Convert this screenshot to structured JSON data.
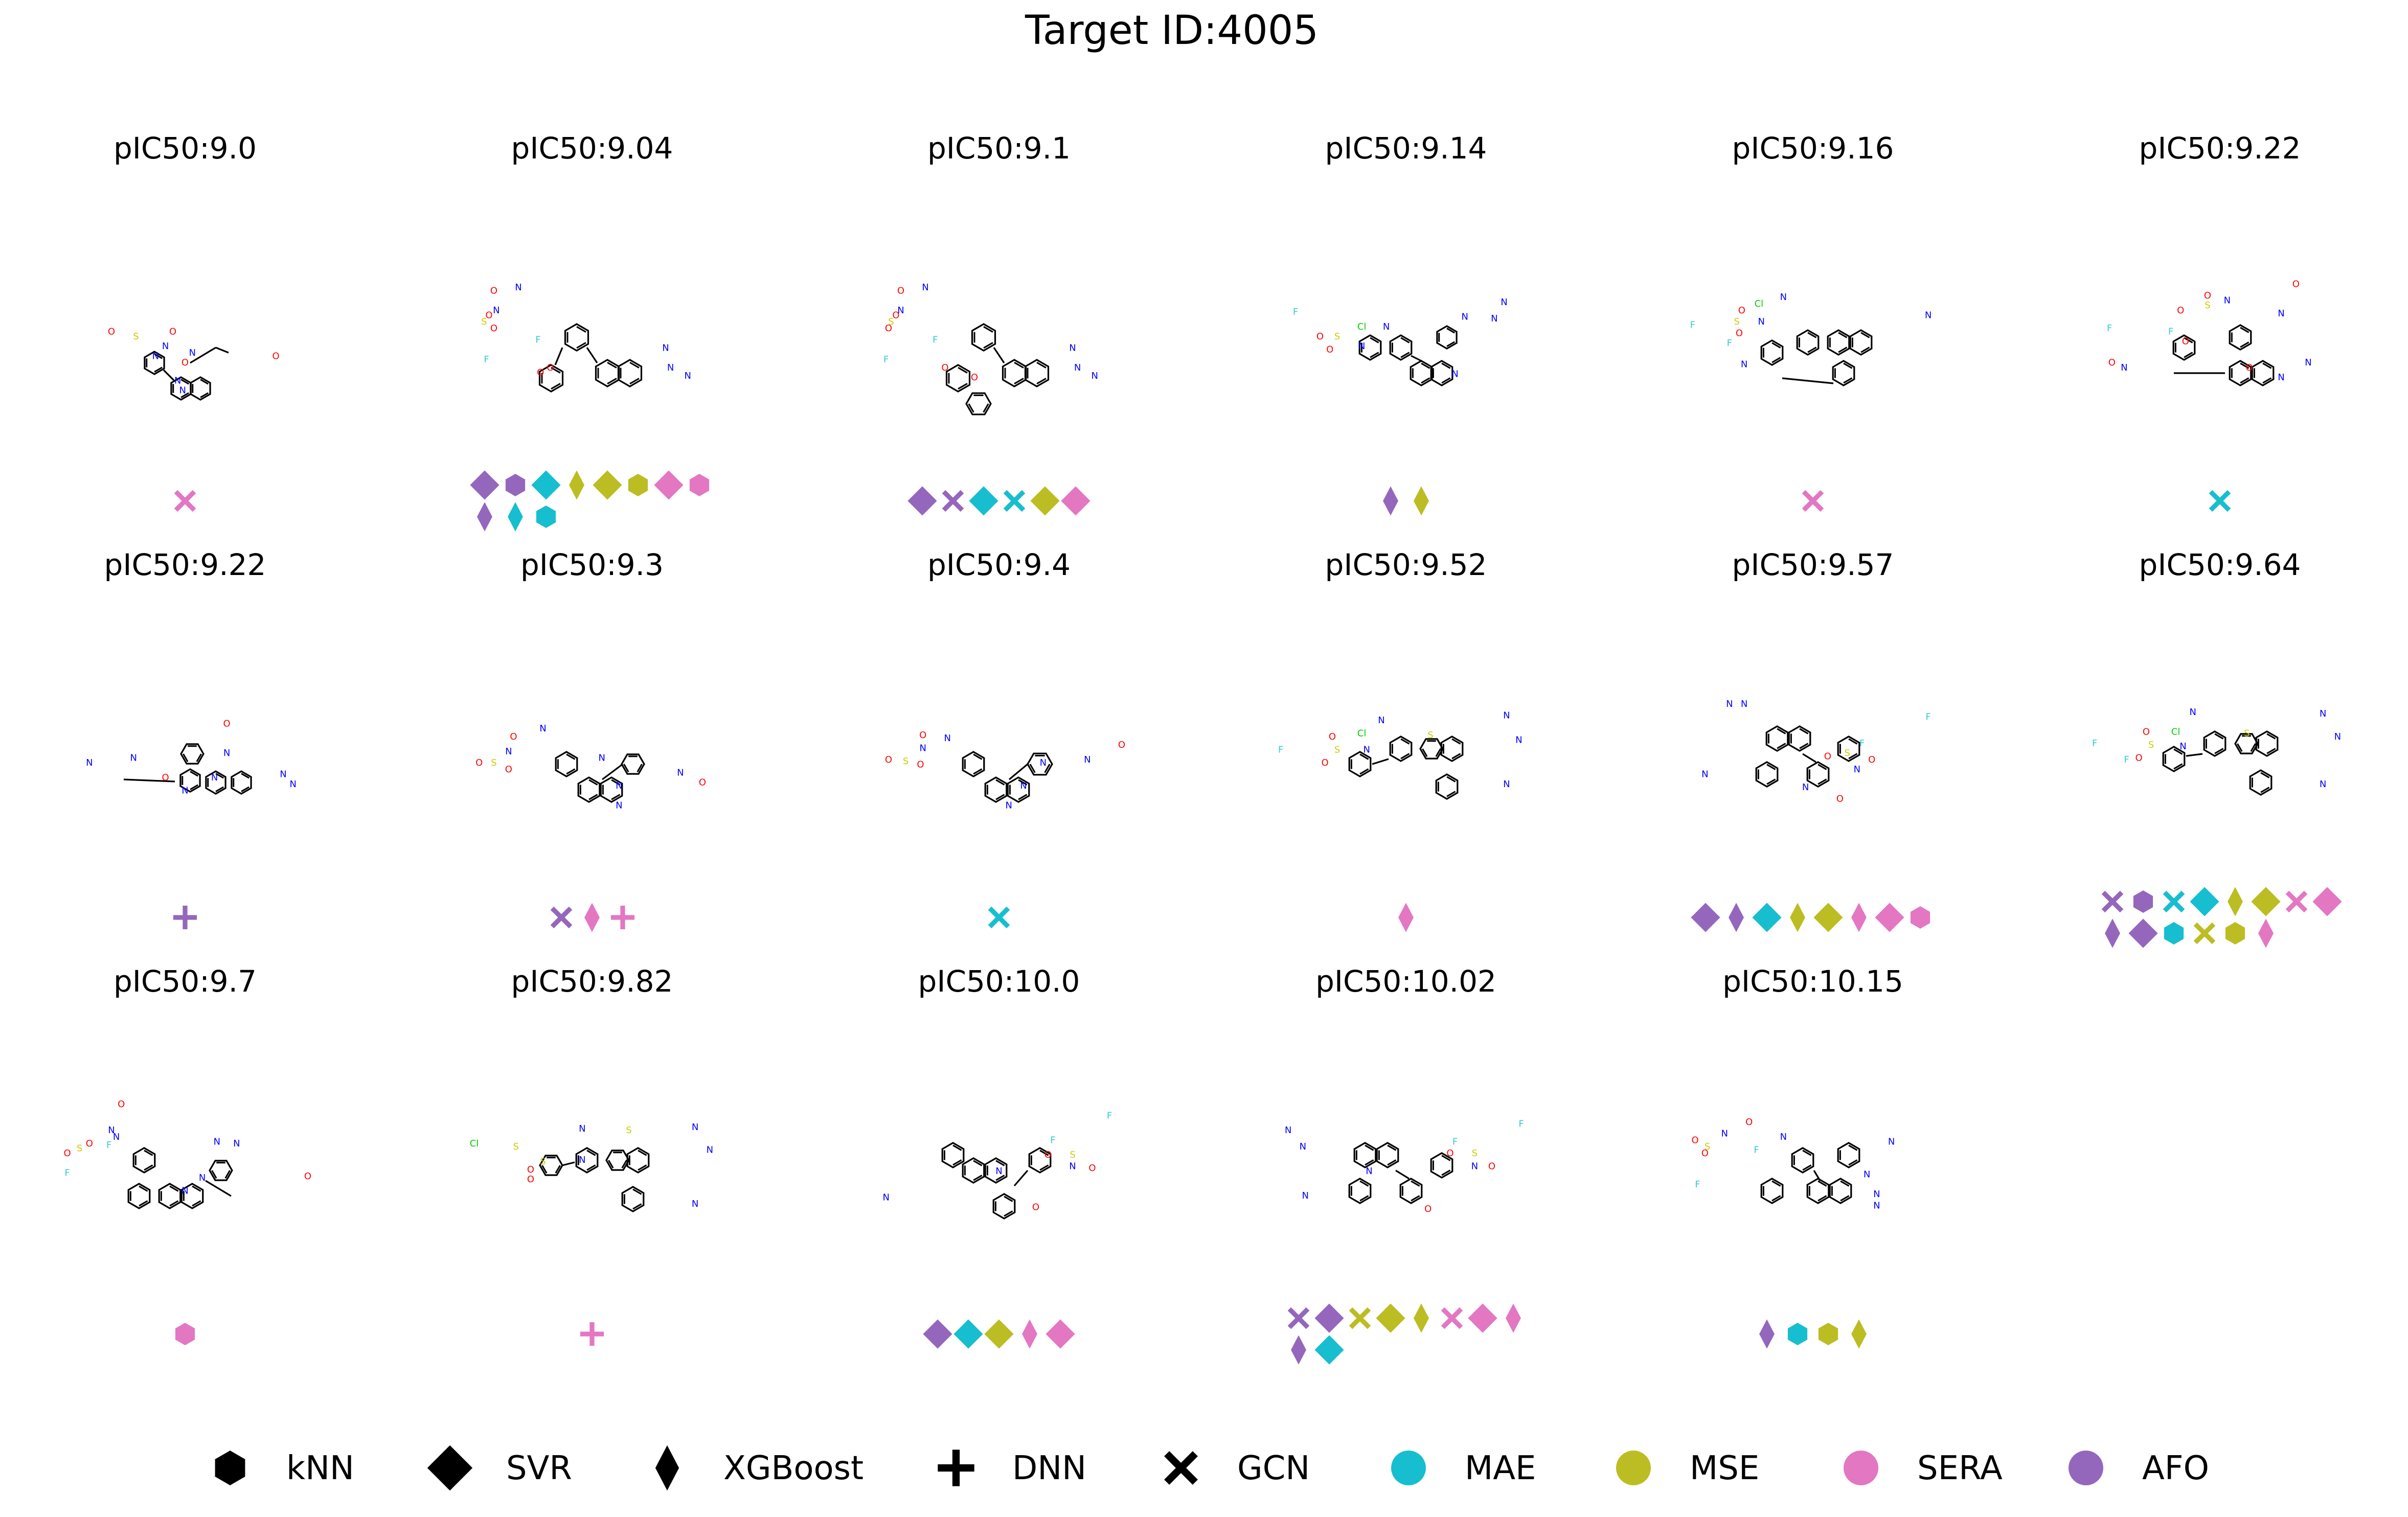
{
  "title": "Target ID:4005",
  "colors": {
    "MAE": "#17becf",
    "MSE": "#bcbd22",
    "SERA": "#e377c2",
    "AFO": "#9467bd",
    "bond": "#000000",
    "N": "#0000ff",
    "O": "#ff0000",
    "S": "#cccc00",
    "F": "#33cccc",
    "Cl": "#00cc00"
  },
  "legend": {
    "models": [
      {
        "label": "kNN",
        "icon": "hexagon-icon"
      },
      {
        "label": "SVR",
        "icon": "diamond-icon"
      },
      {
        "label": "XGBoost",
        "icon": "thin-diamond-icon"
      },
      {
        "label": "DNN",
        "icon": "plus-icon"
      },
      {
        "label": "GCN",
        "icon": "cross-icon"
      }
    ],
    "metrics": [
      {
        "label": "MAE",
        "color": "#17becf"
      },
      {
        "label": "MSE",
        "color": "#bcbd22"
      },
      {
        "label": "SERA",
        "color": "#e377c2"
      },
      {
        "label": "AFO",
        "color": "#9467bd"
      }
    ]
  },
  "panels": [
    {
      "label": "pIC50:9.0",
      "markers": [
        [
          "GCN",
          "SERA"
        ]
      ]
    },
    {
      "label": "pIC50:9.04",
      "markers": [
        [
          "SVR",
          "AFO"
        ],
        [
          "kNN",
          "AFO"
        ],
        [
          "SVR",
          "MAE"
        ],
        [
          "XGBoost",
          "MSE"
        ],
        [
          "SVR",
          "MSE"
        ],
        [
          "kNN",
          "MSE"
        ],
        [
          "SVR",
          "SERA"
        ],
        [
          "kNN",
          "SERA"
        ],
        [
          "XGBoost",
          "AFO"
        ],
        [
          "XGBoost",
          "MAE"
        ],
        [
          "kNN",
          "MAE"
        ]
      ]
    },
    {
      "label": "pIC50:9.1",
      "markers": [
        [
          "SVR",
          "AFO"
        ],
        [
          "GCN",
          "AFO"
        ],
        [
          "SVR",
          "MAE"
        ],
        [
          "GCN",
          "MAE"
        ],
        [
          "SVR",
          "MSE"
        ],
        [
          "SVR",
          "SERA"
        ]
      ]
    },
    {
      "label": "pIC50:9.14",
      "markers": [
        [
          "XGBoost",
          "AFO"
        ],
        [
          "XGBoost",
          "MSE"
        ]
      ]
    },
    {
      "label": "pIC50:9.16",
      "markers": [
        [
          "GCN",
          "SERA"
        ]
      ]
    },
    {
      "label": "pIC50:9.22",
      "markers": [
        [
          "GCN",
          "MAE"
        ]
      ]
    },
    {
      "label": "pIC50:9.22",
      "markers": [
        [
          "DNN",
          "AFO"
        ]
      ]
    },
    {
      "label": "pIC50:9.3",
      "markers": [
        [
          "GCN",
          "AFO"
        ],
        [
          "XGBoost",
          "SERA"
        ],
        [
          "DNN",
          "SERA"
        ]
      ]
    },
    {
      "label": "pIC50:9.4",
      "markers": [
        [
          "GCN",
          "MAE"
        ]
      ]
    },
    {
      "label": "pIC50:9.52",
      "markers": [
        [
          "XGBoost",
          "SERA"
        ]
      ]
    },
    {
      "label": "pIC50:9.57",
      "markers": [
        [
          "SVR",
          "AFO"
        ],
        [
          "XGBoost",
          "AFO"
        ],
        [
          "SVR",
          "MAE"
        ],
        [
          "XGBoost",
          "MSE"
        ],
        [
          "SVR",
          "MSE"
        ],
        [
          "XGBoost",
          "SERA"
        ],
        [
          "SVR",
          "SERA"
        ],
        [
          "kNN",
          "SERA"
        ]
      ]
    },
    {
      "label": "pIC50:9.64",
      "markers": [
        [
          "GCN",
          "AFO"
        ],
        [
          "kNN",
          "AFO"
        ],
        [
          "GCN",
          "MAE"
        ],
        [
          "SVR",
          "MAE"
        ],
        [
          "XGBoost",
          "MSE"
        ],
        [
          "SVR",
          "MSE"
        ],
        [
          "GCN",
          "SERA"
        ],
        [
          "SVR",
          "SERA"
        ],
        [
          "XGBoost",
          "AFO"
        ],
        [
          "SVR",
          "AFO"
        ],
        [
          "kNN",
          "MAE"
        ],
        [
          "GCN",
          "MSE"
        ],
        [
          "kNN",
          "MSE"
        ],
        [
          "XGBoost",
          "SERA"
        ]
      ]
    },
    {
      "label": "pIC50:9.7",
      "markers": [
        [
          "kNN",
          "SERA"
        ]
      ]
    },
    {
      "label": "pIC50:9.82",
      "markers": [
        [
          "DNN",
          "SERA"
        ]
      ]
    },
    {
      "label": "pIC50:10.0",
      "markers": [
        [
          "SVR",
          "AFO"
        ],
        [
          "SVR",
          "MAE"
        ],
        [
          "SVR",
          "MSE"
        ],
        [
          "XGBoost",
          "SERA"
        ],
        [
          "SVR",
          "SERA"
        ]
      ]
    },
    {
      "label": "pIC50:10.02",
      "markers": [
        [
          "GCN",
          "AFO"
        ],
        [
          "SVR",
          "AFO"
        ],
        [
          "GCN",
          "MSE"
        ],
        [
          "SVR",
          "MSE"
        ],
        [
          "XGBoost",
          "MSE"
        ],
        [
          "GCN",
          "SERA"
        ],
        [
          "SVR",
          "SERA"
        ],
        [
          "XGBoost",
          "SERA"
        ],
        [
          "XGBoost",
          "AFO"
        ],
        [
          "SVR",
          "MAE"
        ]
      ]
    },
    {
      "label": "pIC50:10.15",
      "markers": [
        [
          "XGBoost",
          "AFO"
        ],
        [
          "kNN",
          "MAE"
        ],
        [
          "kNN",
          "MSE"
        ],
        [
          "XGBoost",
          "MSE"
        ]
      ]
    }
  ],
  "molecules": [
    {
      "atoms": [
        [
          "O",
          0,
          -28
        ],
        [
          "N",
          -16,
          -48
        ],
        [
          "O",
          -60,
          -66
        ],
        [
          "O",
          -10,
          -66
        ],
        [
          "S",
          -40,
          -60
        ],
        [
          "N",
          -24,
          -36
        ],
        [
          "N",
          -6,
          -6
        ],
        [
          "N",
          -2,
          6
        ],
        [
          "N",
          6,
          -40
        ],
        [
          "O",
          74,
          -36
        ]
      ]
    },
    {
      "atoms": [
        [
          "N",
          -60,
          -120
        ],
        [
          "O",
          -80,
          -116
        ],
        [
          "N",
          -78,
          -92
        ],
        [
          "O",
          -80,
          -70
        ],
        [
          "O",
          -84,
          -86
        ],
        [
          "S",
          -88,
          -78
        ],
        [
          "F",
          -44,
          -56
        ],
        [
          "F",
          -86,
          -32
        ],
        [
          "O",
          -34,
          -22
        ],
        [
          "O",
          -42,
          -16
        ],
        [
          "N",
          60,
          -46
        ],
        [
          "N",
          64,
          -22
        ],
        [
          "N",
          78,
          -12
        ]
      ]
    },
    {
      "atoms": [
        [
          "N",
          -60,
          -120
        ],
        [
          "O",
          -80,
          -116
        ],
        [
          "N",
          -80,
          -92
        ],
        [
          "O",
          -84,
          -86
        ],
        [
          "O",
          -90,
          -70
        ],
        [
          "S",
          -88,
          -78
        ],
        [
          "F",
          -52,
          -56
        ],
        [
          "F",
          -92,
          -32
        ],
        [
          "O",
          -44,
          -22
        ],
        [
          "O",
          -20,
          -10
        ],
        [
          "N",
          60,
          -46
        ],
        [
          "N",
          64,
          -22
        ],
        [
          "N",
          78,
          -12
        ]
      ]
    },
    {
      "atoms": [
        [
          "F",
          -90,
          -90
        ],
        [
          "Cl",
          -36,
          -72
        ],
        [
          "N",
          -16,
          -72
        ],
        [
          "S",
          -56,
          -60
        ],
        [
          "O",
          -62,
          -44
        ],
        [
          "O",
          -70,
          -60
        ],
        [
          "N",
          -36,
          -48
        ],
        [
          "N",
          40,
          -14
        ],
        [
          "N",
          48,
          -84
        ],
        [
          "N",
          80,
          -102
        ],
        [
          "N",
          72,
          -82
        ]
      ]
    },
    {
      "atoms": [
        [
          "N",
          -24,
          -108
        ],
        [
          "Cl",
          -44,
          -100
        ],
        [
          "F",
          -98,
          -74
        ],
        [
          "O",
          -58,
          -92
        ],
        [
          "S",
          -62,
          -78
        ],
        [
          "O",
          -60,
          -64
        ],
        [
          "N",
          -42,
          -78
        ],
        [
          "F",
          -68,
          -52
        ],
        [
          "N",
          94,
          -86
        ],
        [
          "N",
          -56,
          -26
        ]
      ]
    },
    {
      "atoms": [
        [
          "O",
          -10,
          -110
        ],
        [
          "S",
          -10,
          -98
        ],
        [
          "O",
          -32,
          -92
        ],
        [
          "N",
          6,
          -104
        ],
        [
          "O",
          62,
          -124
        ],
        [
          "F",
          -90,
          -70
        ],
        [
          "F",
          -40,
          -66
        ],
        [
          "N",
          50,
          -88
        ],
        [
          "O",
          -28,
          -54
        ],
        [
          "O",
          24,
          -22
        ],
        [
          "N",
          -78,
          -22
        ],
        [
          "O",
          -88,
          -28
        ],
        [
          "N",
          50,
          -10
        ],
        [
          "N",
          72,
          -28
        ]
      ]
    },
    {
      "atoms": [
        [
          "O",
          34,
          -96
        ],
        [
          "N",
          34,
          -60
        ],
        [
          "N",
          -78,
          -48
        ],
        [
          "N",
          -42,
          -54
        ],
        [
          "O",
          -16,
          -30
        ],
        [
          "N",
          24,
          -30
        ],
        [
          "N",
          0,
          -14
        ],
        [
          "N",
          80,
          -34
        ],
        [
          "N",
          88,
          -22
        ]
      ]
    },
    {
      "atoms": [
        [
          "O",
          -64,
          -80
        ],
        [
          "N",
          -40,
          -90
        ],
        [
          "N",
          -68,
          -62
        ],
        [
          "S",
          -80,
          -48
        ],
        [
          "O",
          -68,
          -40
        ],
        [
          "O",
          -92,
          -48
        ],
        [
          "N",
          8,
          -54
        ],
        [
          "N",
          72,
          -36
        ],
        [
          "O",
          90,
          -24
        ],
        [
          "N",
          22,
          -20
        ],
        [
          "N",
          22,
          4
        ]
      ]
    },
    {
      "atoms": [
        [
          "O",
          -62,
          -82
        ],
        [
          "N",
          -42,
          -78
        ],
        [
          "N",
          -62,
          -66
        ],
        [
          "S",
          -76,
          -50
        ],
        [
          "O",
          -64,
          -46
        ],
        [
          "O",
          -90,
          -52
        ],
        [
          "N",
          36,
          -48
        ],
        [
          "N",
          72,
          -52
        ],
        [
          "O",
          100,
          -70
        ],
        [
          "N",
          20,
          -20
        ],
        [
          "N",
          8,
          4
        ]
      ]
    },
    {
      "atoms": [
        [
          "N",
          -20,
          -100
        ],
        [
          "Cl",
          -36,
          -84
        ],
        [
          "F",
          -102,
          -64
        ],
        [
          "S",
          -56,
          -64
        ],
        [
          "O",
          -66,
          -48
        ],
        [
          "O",
          -60,
          -80
        ],
        [
          "N",
          -32,
          -64
        ],
        [
          "S",
          20,
          -82
        ],
        [
          "N",
          82,
          -106
        ],
        [
          "N",
          92,
          -76
        ],
        [
          "N",
          82,
          -22
        ]
      ]
    },
    {
      "atoms": [
        [
          "N",
          -68,
          -120
        ],
        [
          "N",
          -56,
          -120
        ],
        [
          "N",
          -88,
          -34
        ],
        [
          "F",
          94,
          -104
        ],
        [
          "F",
          40,
          -72
        ],
        [
          "S",
          28,
          -60
        ],
        [
          "O",
          12,
          -56
        ],
        [
          "O",
          48,
          -52
        ],
        [
          "N",
          36,
          -40
        ],
        [
          "N",
          -6,
          -18
        ],
        [
          "O",
          22,
          -4
        ]
      ]
    },
    {
      "atoms": [
        [
          "N",
          -22,
          -110
        ],
        [
          "Cl",
          -36,
          -86
        ],
        [
          "F",
          -102,
          -72
        ],
        [
          "S",
          -56,
          -70
        ],
        [
          "O",
          -66,
          -54
        ],
        [
          "O",
          -60,
          -86
        ],
        [
          "N",
          -30,
          -68
        ],
        [
          "F",
          -76,
          -52
        ],
        [
          "S",
          22,
          -84
        ],
        [
          "N",
          84,
          -108
        ],
        [
          "N",
          96,
          -80
        ],
        [
          "N",
          84,
          -22
        ]
      ]
    },
    {
      "atoms": [
        [
          "O",
          -52,
          -140
        ],
        [
          "N",
          -60,
          -108
        ],
        [
          "O",
          -78,
          -92
        ],
        [
          "O",
          -96,
          -80
        ],
        [
          "S",
          -86,
          -86
        ],
        [
          "N",
          -56,
          -100
        ],
        [
          "F",
          -62,
          -90
        ],
        [
          "F",
          -96,
          -56
        ],
        [
          "N",
          26,
          -94
        ],
        [
          "N",
          42,
          -92
        ],
        [
          "N",
          0,
          -34
        ],
        [
          "N",
          14,
          -50
        ],
        [
          "O",
          100,
          -52
        ]
      ]
    },
    {
      "atoms": [
        [
          "N",
          -8,
          -110
        ],
        [
          "Cl",
          -96,
          -92
        ],
        [
          "S",
          -62,
          -88
        ],
        [
          "S",
          -40,
          -70
        ],
        [
          "O",
          -50,
          -60
        ],
        [
          "O",
          -50,
          -48
        ],
        [
          "N",
          -8,
          -72
        ],
        [
          "S",
          30,
          -108
        ],
        [
          "N",
          84,
          -112
        ],
        [
          "N",
          96,
          -84
        ],
        [
          "N",
          84,
          -18
        ]
      ]
    },
    {
      "atoms": [
        [
          "F",
          90,
          -126
        ],
        [
          "F",
          44,
          -96
        ],
        [
          "S",
          60,
          -78
        ],
        [
          "O",
          40,
          -78
        ],
        [
          "O",
          76,
          -62
        ],
        [
          "N",
          60,
          -64
        ],
        [
          "N",
          0,
          -58
        ],
        [
          "N",
          -92,
          -26
        ],
        [
          "O",
          30,
          -14
        ]
      ]
    },
    {
      "atoms": [
        [
          "N",
          -96,
          -108
        ],
        [
          "N",
          -84,
          -88
        ],
        [
          "F",
          94,
          -116
        ],
        [
          "F",
          40,
          -94
        ],
        [
          "S",
          56,
          -80
        ],
        [
          "O",
          36,
          -80
        ],
        [
          "O",
          70,
          -64
        ],
        [
          "N",
          56,
          -64
        ],
        [
          "N",
          -30,
          -58
        ],
        [
          "N",
          -82,
          -28
        ],
        [
          "O",
          18,
          -12
        ]
      ]
    },
    {
      "atoms": [
        [
          "O",
          -52,
          -118
        ],
        [
          "N",
          -72,
          -104
        ],
        [
          "N",
          -24,
          -100
        ],
        [
          "O",
          -88,
          -80
        ],
        [
          "O",
          -96,
          -96
        ],
        [
          "S",
          -86,
          -88
        ],
        [
          "F",
          -46,
          -84
        ],
        [
          "F",
          -94,
          -42
        ],
        [
          "N",
          64,
          -94
        ],
        [
          "N",
          44,
          -54
        ],
        [
          "N",
          52,
          -30
        ],
        [
          "N",
          52,
          -16
        ]
      ]
    }
  ]
}
